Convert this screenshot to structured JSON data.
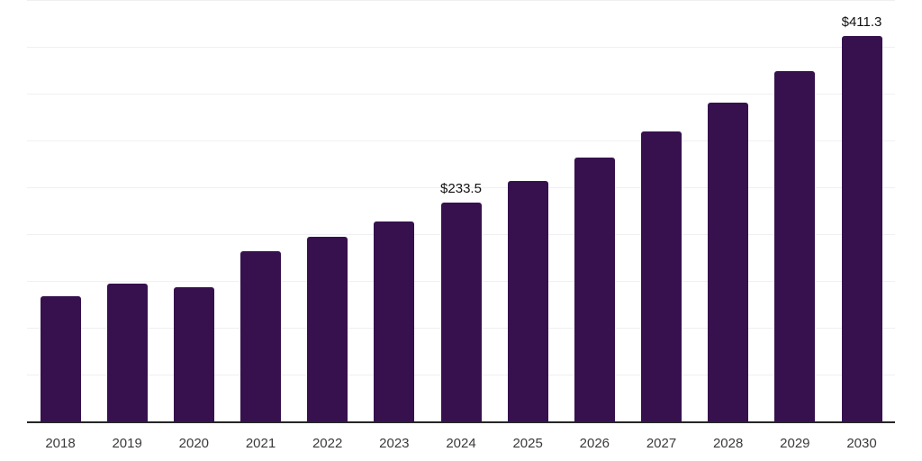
{
  "chart_data": {
    "type": "bar",
    "title": "",
    "xlabel": "",
    "ylabel": "",
    "categories": [
      "2018",
      "2019",
      "2020",
      "2021",
      "2022",
      "2023",
      "2024",
      "2025",
      "2026",
      "2027",
      "2028",
      "2029",
      "2030"
    ],
    "values": [
      133.4,
      147.6,
      143.6,
      182.0,
      197.1,
      213.8,
      233.5,
      256.6,
      282.0,
      309.9,
      340.6,
      374.3,
      411.3
    ],
    "data_labels": [
      "",
      "",
      "",
      "",
      "",
      "",
      "$233.5",
      "",
      "",
      "",
      "",
      "",
      "$411.3"
    ],
    "ylim": [
      0,
      450
    ],
    "gridline_step": 50,
    "grid": true,
    "legend": "none",
    "colors": {
      "bar": "#36114E",
      "axis_line": "#262626",
      "gridline": "#f0f0f2",
      "tick_label": "#3a3a3a",
      "data_label": "#111111"
    }
  }
}
